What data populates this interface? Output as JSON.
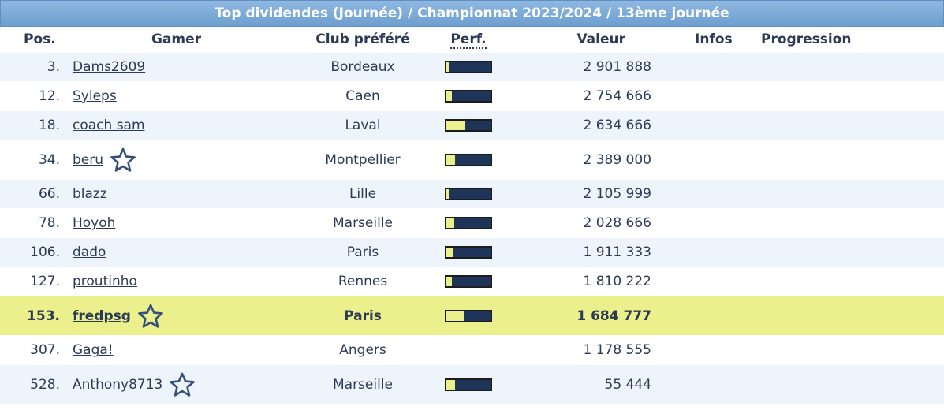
{
  "title": "Top dividendes (Journée) / Championnat 2023/2024 / 13ème journée",
  "headers": {
    "pos": "Pos.",
    "gamer": "Gamer",
    "club": "Club préféré",
    "perf": "Perf.",
    "value": "Valeur",
    "infos": "Infos",
    "progression": "Progression"
  },
  "rows": [
    {
      "pos": "3.",
      "gamer": "Dams2609",
      "club": "Bordeaux",
      "perf": 0.05,
      "value": "2 901 888",
      "star": false,
      "me": false
    },
    {
      "pos": "12.",
      "gamer": "Syleps",
      "club": "Caen",
      "perf": 0.12,
      "value": "2 754 666",
      "star": false,
      "me": false
    },
    {
      "pos": "18.",
      "gamer": "coach sam",
      "club": "Laval",
      "perf": 0.42,
      "value": "2 634 666",
      "star": false,
      "me": false
    },
    {
      "pos": "34.",
      "gamer": "beru",
      "club": "Montpellier",
      "perf": 0.2,
      "value": "2 389 000",
      "star": true,
      "me": false
    },
    {
      "pos": "66.",
      "gamer": "blazz",
      "club": "Lille",
      "perf": 0.05,
      "value": "2 105 999",
      "star": false,
      "me": false
    },
    {
      "pos": "78.",
      "gamer": "Hoyoh",
      "club": "Marseille",
      "perf": 0.18,
      "value": "2 028 666",
      "star": false,
      "me": false
    },
    {
      "pos": "106.",
      "gamer": "dado",
      "club": "Paris",
      "perf": 0.15,
      "value": "1 911 333",
      "star": false,
      "me": false
    },
    {
      "pos": "127.",
      "gamer": "proutinho",
      "club": "Rennes",
      "perf": 0.12,
      "value": "1 810 222",
      "star": false,
      "me": false
    },
    {
      "pos": "153.",
      "gamer": "fredpsg",
      "club": "Paris",
      "perf": 0.4,
      "value": "1 684 777",
      "star": true,
      "me": true
    },
    {
      "pos": "307.",
      "gamer": "Gaga!",
      "club": "Angers",
      "perf": null,
      "value": "1 178 555",
      "star": false,
      "me": false
    },
    {
      "pos": "528.",
      "gamer": "Anthony8713",
      "club": "Marseille",
      "perf": 0.2,
      "value": "55 444",
      "star": true,
      "me": false
    }
  ],
  "colors": {
    "header_bar": "#7aaad8",
    "row_alt": "#eef4fc",
    "highlight": "#ecf08c",
    "perf_track": "#1e3559",
    "perf_fill": "#ecf08c"
  }
}
